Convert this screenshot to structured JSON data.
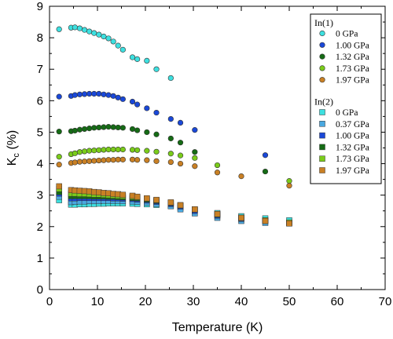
{
  "chart_data": {
    "type": "scatter",
    "xlabel": "Temperature (K)",
    "ylabel_main": "K",
    "ylabel_sub": "c",
    "ylabel_tail": " (%)",
    "xlim": [
      0,
      70
    ],
    "ylim": [
      0,
      9
    ],
    "xticks": [
      0,
      10,
      20,
      30,
      40,
      50,
      60,
      70
    ],
    "yticks": [
      0,
      1,
      2,
      3,
      4,
      5,
      6,
      7,
      8,
      9
    ],
    "grid": false,
    "legend_position": "top-right",
    "groups": [
      {
        "name": "In(1)",
        "marker": "circle",
        "series": [
          {
            "name": "0 GPa",
            "color": "#3de0e0",
            "x": [
              2,
              4.5,
              5.3,
              6.3,
              7.3,
              8.3,
              9.3,
              10.3,
              11.3,
              12.3,
              13.3,
              14.3,
              15.3,
              17.3,
              18.3,
              20.3,
              22.3,
              25.3
            ],
            "y": [
              8.27,
              8.32,
              8.33,
              8.3,
              8.25,
              8.2,
              8.15,
              8.1,
              8.04,
              7.98,
              7.88,
              7.75,
              7.62,
              7.38,
              7.32,
              7.27,
              7.0,
              6.72
            ]
          },
          {
            "name": "1.00 GPa",
            "color": "#1a48d8",
            "x": [
              2,
              4.5,
              5.3,
              6.3,
              7.3,
              8.3,
              9.3,
              10.3,
              11.3,
              12.3,
              13.3,
              14.3,
              15.3,
              17.3,
              18.3,
              20.3,
              22.3,
              25.3,
              27.3,
              30.3,
              45
            ],
            "y": [
              6.13,
              6.15,
              6.18,
              6.2,
              6.21,
              6.22,
              6.22,
              6.22,
              6.2,
              6.18,
              6.15,
              6.1,
              6.05,
              5.97,
              5.88,
              5.76,
              5.62,
              5.42,
              5.3,
              5.07,
              4.27
            ]
          },
          {
            "name": "1.32 GPa",
            "color": "#156b15",
            "x": [
              2,
              4.5,
              5.3,
              6.3,
              7.3,
              8.3,
              9.3,
              10.3,
              11.3,
              12.3,
              13.3,
              14.3,
              15.3,
              17.3,
              18.3,
              20.3,
              22.3,
              25.3,
              27.3,
              30.3,
              45
            ],
            "y": [
              5.02,
              5.03,
              5.05,
              5.08,
              5.1,
              5.12,
              5.14,
              5.15,
              5.16,
              5.17,
              5.16,
              5.15,
              5.14,
              5.1,
              5.06,
              5.0,
              4.93,
              4.8,
              4.67,
              4.37,
              3.75
            ]
          },
          {
            "name": "1.73 GPa",
            "color": "#7acc1a",
            "x": [
              2,
              4.5,
              5.3,
              6.3,
              7.3,
              8.3,
              9.3,
              10.3,
              11.3,
              12.3,
              13.3,
              14.3,
              15.3,
              17.3,
              18.3,
              20.3,
              22.3,
              25.3,
              27.3,
              30.3,
              35,
              50
            ],
            "y": [
              4.22,
              4.3,
              4.33,
              4.37,
              4.39,
              4.41,
              4.42,
              4.43,
              4.44,
              4.45,
              4.45,
              4.45,
              4.45,
              4.44,
              4.43,
              4.41,
              4.38,
              4.32,
              4.26,
              4.18,
              3.95,
              3.45
            ]
          },
          {
            "name": "1.97 GPa",
            "color": "#c98024",
            "x": [
              2,
              4.5,
              5.3,
              6.3,
              7.3,
              8.3,
              9.3,
              10.3,
              11.3,
              12.3,
              13.3,
              14.3,
              15.3,
              17.3,
              18.3,
              20.3,
              22.3,
              25.3,
              27.3,
              30.3,
              35,
              40,
              50
            ],
            "y": [
              3.97,
              4.02,
              4.04,
              4.06,
              4.07,
              4.08,
              4.09,
              4.1,
              4.11,
              4.12,
              4.12,
              4.13,
              4.13,
              4.13,
              4.12,
              4.11,
              4.08,
              4.05,
              4.0,
              3.92,
              3.72,
              3.6,
              3.3
            ]
          }
        ]
      },
      {
        "name": "In(2)",
        "marker": "square",
        "series": [
          {
            "name": "0 GPa",
            "color": "#3de0e0",
            "x": [
              2,
              4.5,
              5.3,
              6.3,
              7.3,
              8.3,
              9.3,
              10.3,
              11.3,
              12.3,
              13.3,
              14.3,
              15.3,
              17.3,
              18.3,
              20.3,
              22.3,
              25.3,
              27.3,
              30.3,
              35,
              40,
              45,
              50
            ],
            "y": [
              2.84,
              2.7,
              2.7,
              2.71,
              2.71,
              2.72,
              2.72,
              2.73,
              2.73,
              2.74,
              2.74,
              2.74,
              2.74,
              2.73,
              2.72,
              2.71,
              2.69,
              2.65,
              2.6,
              2.53,
              2.43,
              2.33,
              2.26,
              2.2
            ]
          },
          {
            "name": "0.37 GPa",
            "color": "#4aa8e0",
            "x": [
              2,
              4.5,
              5.3,
              6.3,
              7.3,
              8.3,
              9.3,
              10.3,
              11.3,
              12.3,
              13.3,
              14.3,
              15.3,
              17.3,
              18.3,
              20.3,
              22.3,
              25.3,
              27.3,
              30.3,
              35,
              40,
              45,
              50
            ],
            "y": [
              2.95,
              2.78,
              2.79,
              2.8,
              2.8,
              2.81,
              2.81,
              2.81,
              2.82,
              2.82,
              2.82,
              2.82,
              2.81,
              2.8,
              2.79,
              2.76,
              2.72,
              2.65,
              2.55,
              2.42,
              2.28,
              2.18,
              2.12,
              2.1
            ]
          },
          {
            "name": "1.00 GPa",
            "color": "#1a48d8",
            "x": [
              2,
              4.5,
              5.3,
              6.3,
              7.3,
              8.3,
              9.3,
              10.3,
              11.3,
              12.3,
              13.3,
              14.3,
              15.3,
              17.3,
              18.3,
              20.3,
              22.3,
              25.3,
              27.3,
              30.3,
              35,
              40,
              45,
              50
            ],
            "y": [
              3.05,
              2.9,
              2.9,
              2.91,
              2.91,
              2.91,
              2.91,
              2.91,
              2.91,
              2.91,
              2.9,
              2.9,
              2.89,
              2.88,
              2.86,
              2.83,
              2.79,
              2.72,
              2.64,
              2.5,
              2.35,
              2.25,
              2.18,
              2.12
            ]
          },
          {
            "name": "1.32 GPa",
            "color": "#156b15",
            "x": [
              2,
              4.5,
              5.3,
              6.3,
              7.3,
              8.3,
              9.3,
              10.3,
              11.3,
              12.3,
              13.3,
              14.3,
              15.3,
              17.3,
              18.3,
              20.3,
              22.3,
              25.3,
              27.3,
              30.3,
              35,
              40,
              45,
              50
            ],
            "y": [
              3.1,
              2.97,
              2.97,
              2.97,
              2.97,
              2.97,
              2.96,
              2.96,
              2.96,
              2.95,
              2.95,
              2.94,
              2.93,
              2.91,
              2.9,
              2.86,
              2.82,
              2.75,
              2.67,
              2.54,
              2.38,
              2.27,
              2.2,
              2.12
            ]
          },
          {
            "name": "1.73 GPa",
            "color": "#7acc1a",
            "x": [
              2,
              4.5,
              5.3,
              6.3,
              7.3,
              8.3,
              9.3,
              10.3,
              11.3,
              12.3,
              13.3,
              14.3,
              15.3,
              17.3,
              18.3,
              20.3,
              22.3,
              25.3,
              27.3,
              30.3,
              35,
              40,
              45,
              50
            ],
            "y": [
              3.2,
              3.05,
              3.05,
              3.04,
              3.04,
              3.03,
              3.02,
              3.02,
              3.01,
              3.0,
              2.99,
              2.98,
              2.97,
              2.95,
              2.93,
              2.89,
              2.84,
              2.76,
              2.68,
              2.55,
              2.4,
              2.28,
              2.2,
              2.13
            ]
          },
          {
            "name": "1.97 GPa",
            "color": "#c98024",
            "x": [
              2,
              4.5,
              5.3,
              6.3,
              7.3,
              8.3,
              9.3,
              10.3,
              11.3,
              12.3,
              13.3,
              14.3,
              15.3,
              17.3,
              18.3,
              20.3,
              22.3,
              25.3,
              27.3,
              30.3,
              35,
              40,
              45,
              50
            ],
            "y": [
              3.28,
              3.16,
              3.15,
              3.14,
              3.13,
              3.12,
              3.1,
              3.09,
              3.07,
              3.06,
              3.04,
              3.03,
              3.01,
              2.98,
              2.95,
              2.9,
              2.85,
              2.77,
              2.68,
              2.55,
              2.4,
              2.28,
              2.18,
              2.1
            ]
          }
        ]
      }
    ]
  }
}
